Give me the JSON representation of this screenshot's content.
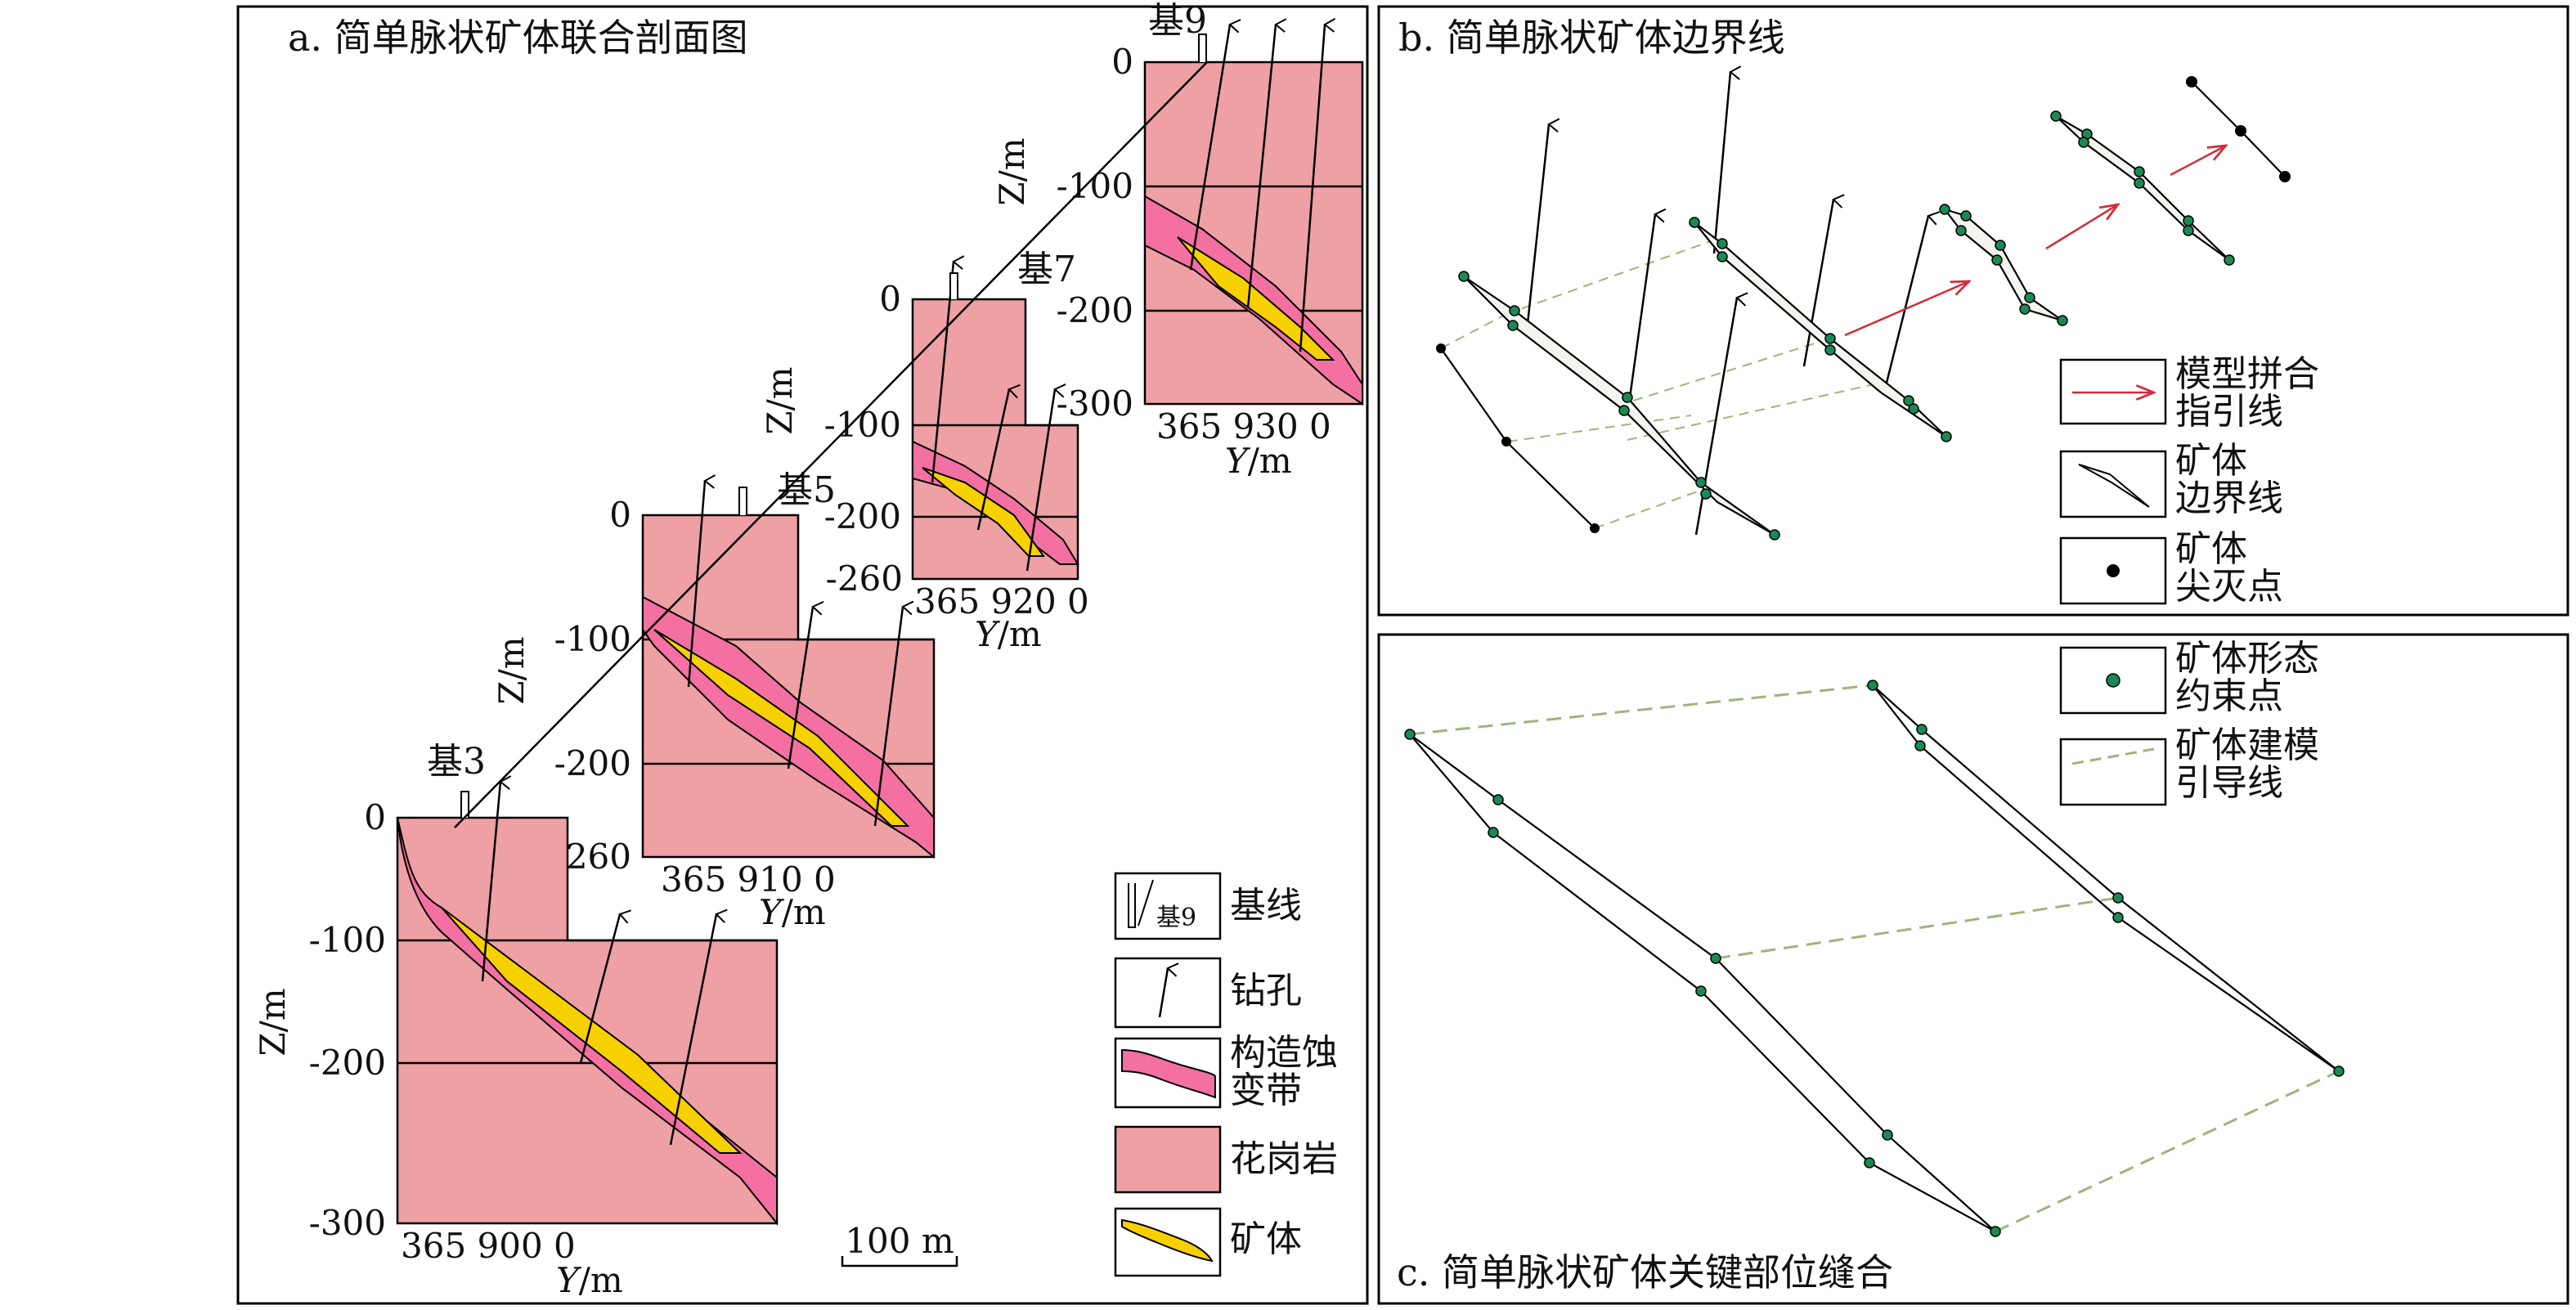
{
  "panels": {
    "a": {
      "title": "a. 简单脉状矿体联合剖面图"
    },
    "b": {
      "title": "b. 简单脉状矿体边界线"
    },
    "c": {
      "title": "c. 简单脉状矿体关键部位缝合"
    }
  },
  "sections": [
    {
      "baseline": "基3",
      "ticks": [
        "0",
        "-100",
        "-200",
        "-300"
      ],
      "xlabels": "365 900 0"
    },
    {
      "baseline": "基5",
      "ticks": [
        "0",
        "-100",
        "-200",
        "260"
      ],
      "xlabels": "365 910 0"
    },
    {
      "baseline": "基7",
      "ticks": [
        "0",
        "-100",
        "-200",
        "-260"
      ],
      "xlabels": "365 920 0"
    },
    {
      "baseline": "基9",
      "ticks": [
        "0",
        "-100",
        "-200",
        "-300"
      ],
      "xlabels": "365 930 0"
    }
  ],
  "axis": {
    "z": "Z/m",
    "y_prefix": "Y",
    "y_suffix": "/m"
  },
  "scale_bar": "100 m",
  "legend_a": {
    "baseline_icon": "基9",
    "items": [
      "基线",
      "钻孔",
      "构造蚀",
      "变带",
      "花岗岩",
      "矿体"
    ]
  },
  "legend_b": [
    "模型拼合",
    "指引线",
    "矿体",
    "边界线",
    "矿体",
    "尖灭点"
  ],
  "legend_c": [
    "矿体形态",
    "约束点",
    "矿体建模",
    "引导线"
  ],
  "colors": {
    "granite": "#eea0a5",
    "alteration": "#f46fa2",
    "ore": "#f7d000",
    "guide_red": "#d42a3a",
    "constraint_green": "#1a8a54",
    "guide_dash": "#9eb57e"
  }
}
